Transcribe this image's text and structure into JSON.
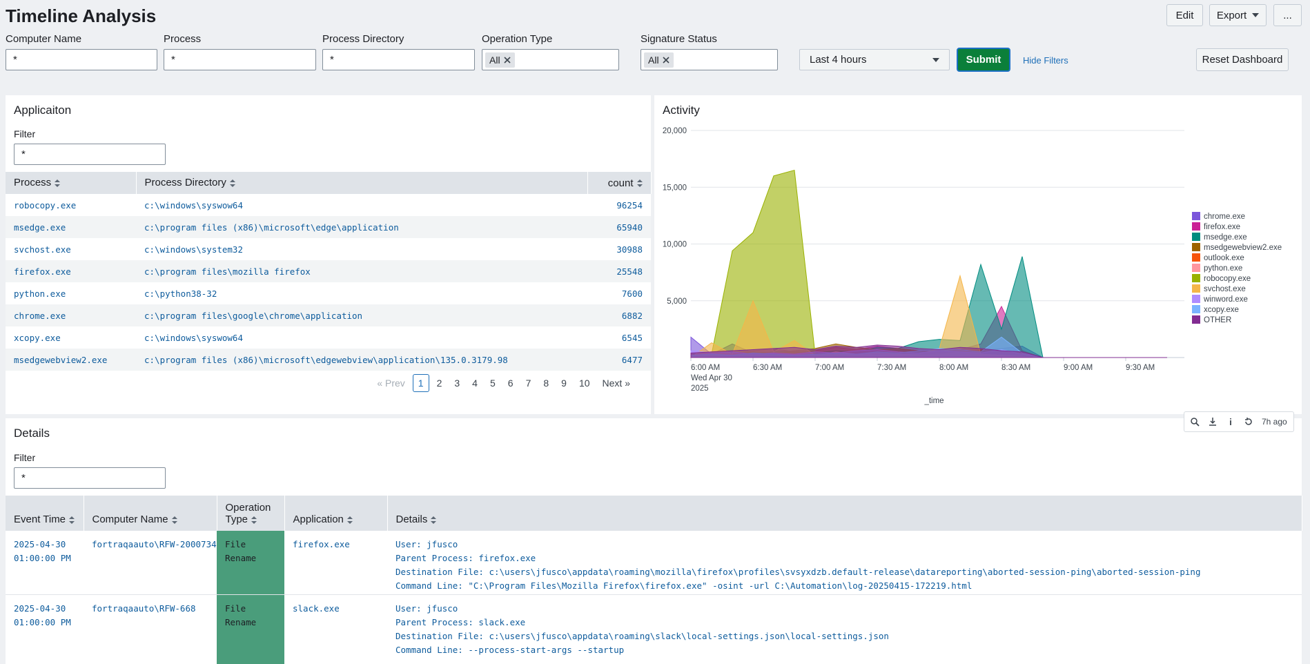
{
  "header": {
    "title": "Timeline Analysis",
    "buttons": [
      "Edit",
      "Export",
      "..."
    ]
  },
  "filters": [
    {
      "label": "Computer Name",
      "value": "*"
    },
    {
      "label": "Process",
      "value": "*"
    },
    {
      "label": "Process Directory",
      "value": "*"
    },
    {
      "label": "Operation Type",
      "token": "All"
    },
    {
      "label": "Signature Status",
      "token": "All"
    }
  ],
  "time_picker": "Last 4 hours",
  "submit": "Submit",
  "hide_filters": "Hide Filters",
  "reset": "Reset Dashboard",
  "application": {
    "title": "Applicaiton",
    "filter_label": "Filter",
    "filter_value": "*",
    "columns": [
      "Process",
      "Process Directory",
      "count"
    ],
    "rows": [
      [
        "robocopy.exe",
        "c:\\windows\\syswow64",
        96254
      ],
      [
        "msedge.exe",
        "c:\\program files (x86)\\microsoft\\edge\\application",
        65940
      ],
      [
        "svchost.exe",
        "c:\\windows\\system32",
        30988
      ],
      [
        "firefox.exe",
        "c:\\program files\\mozilla firefox",
        25548
      ],
      [
        "python.exe",
        "c:\\python38-32",
        7600
      ],
      [
        "chrome.exe",
        "c:\\program files\\google\\chrome\\application",
        6882
      ],
      [
        "xcopy.exe",
        "c:\\windows\\syswow64",
        6545
      ],
      [
        "msedgewebview2.exe",
        "c:\\program files (x86)\\microsoft\\edgewebview\\application\\135.0.3179.98",
        6477
      ]
    ],
    "pagination": {
      "prev": "« Prev",
      "pages": [
        1,
        2,
        3,
        4,
        5,
        6,
        7,
        8,
        9,
        10
      ],
      "current": 1,
      "next": "Next »"
    }
  },
  "chart_data": {
    "type": "area",
    "title": "Activity",
    "xlabel": "_time",
    "x": [
      "2025-04-30 06:00",
      "2025-04-30 06:10",
      "2025-04-30 06:20",
      "2025-04-30 06:30",
      "2025-04-30 06:40",
      "2025-04-30 06:50",
      "2025-04-30 07:00",
      "2025-04-30 07:10",
      "2025-04-30 07:20",
      "2025-04-30 07:30",
      "2025-04-30 07:40",
      "2025-04-30 07:50",
      "2025-04-30 08:00",
      "2025-04-30 08:10",
      "2025-04-30 08:20",
      "2025-04-30 08:30",
      "2025-04-30 08:40",
      "2025-04-30 08:50",
      "2025-04-30 09:00",
      "2025-04-30 09:10",
      "2025-04-30 09:20",
      "2025-04-30 09:30",
      "2025-04-30 09:40",
      "2025-04-30 09:50"
    ],
    "xlim": [
      "2025-04-30 06:00",
      "2025-04-30 09:55"
    ],
    "xticks": [
      {
        "value": "2025-04-30 06:00",
        "label": "6:00 AM"
      },
      {
        "value": "2025-04-30 06:30",
        "label": "6:30 AM"
      },
      {
        "value": "2025-04-30 07:00",
        "label": "7:00 AM"
      },
      {
        "value": "2025-04-30 07:30",
        "label": "7:30 AM"
      },
      {
        "value": "2025-04-30 08:00",
        "label": "8:00 AM"
      },
      {
        "value": "2025-04-30 08:30",
        "label": "8:30 AM"
      },
      {
        "value": "2025-04-30 09:00",
        "label": "9:00 AM"
      },
      {
        "value": "2025-04-30 09:30",
        "label": "9:30 AM"
      }
    ],
    "xtick_sublabels": [
      "Wed Apr 30",
      "2025"
    ],
    "ylim": [
      0,
      20000
    ],
    "yticks": [
      {
        "value": 5000,
        "label": "5,000"
      },
      {
        "value": 10000,
        "label": "10,000"
      },
      {
        "value": 15000,
        "label": "15,000"
      },
      {
        "value": 20000,
        "label": "20,000"
      }
    ],
    "grid": true,
    "legend": "right",
    "series": [
      {
        "name": "chrome.exe",
        "color": "#7b56db",
        "values": [
          1800,
          300,
          1200,
          400,
          300,
          600,
          300,
          400,
          500,
          600,
          400,
          300,
          500,
          400,
          600,
          800,
          1000,
          0,
          0,
          0,
          0,
          0,
          0,
          0
        ]
      },
      {
        "name": "firefox.exe",
        "color": "#cb2196",
        "values": [
          200,
          300,
          400,
          600,
          800,
          500,
          600,
          900,
          700,
          1000,
          800,
          600,
          500,
          700,
          1200,
          4500,
          600,
          0,
          0,
          0,
          0,
          0,
          0,
          0
        ]
      },
      {
        "name": "msedge.exe",
        "color": "#008c80",
        "values": [
          300,
          500,
          400,
          300,
          500,
          600,
          400,
          600,
          500,
          900,
          800,
          1400,
          1600,
          1500,
          8200,
          2500,
          8900,
          0,
          0,
          0,
          0,
          0,
          0,
          0
        ]
      },
      {
        "name": "msedgewebview2.exe",
        "color": "#9d6300",
        "values": [
          300,
          400,
          300,
          500,
          400,
          600,
          800,
          1200,
          900,
          700,
          800,
          600,
          500,
          600,
          700,
          500,
          400,
          0,
          0,
          0,
          0,
          0,
          0,
          0
        ]
      },
      {
        "name": "outlook.exe",
        "color": "#f6540b",
        "values": [
          100,
          200,
          150,
          300,
          200,
          250,
          200,
          300,
          250,
          200,
          300,
          200,
          250,
          200,
          300,
          200,
          100,
          0,
          0,
          0,
          0,
          0,
          0,
          0
        ]
      },
      {
        "name": "python.exe",
        "color": "#ff969e",
        "values": [
          100,
          100,
          200,
          300,
          200,
          300,
          200,
          500,
          300,
          200,
          300,
          200,
          300,
          400,
          300,
          200,
          100,
          0,
          0,
          0,
          0,
          0,
          0,
          0
        ]
      },
      {
        "name": "robocopy.exe",
        "color": "#99b100",
        "values": [
          0,
          300,
          9400,
          11000,
          16000,
          16500,
          300,
          200,
          100,
          100,
          100,
          200,
          300,
          500,
          300,
          200,
          100,
          0,
          0,
          0,
          0,
          0,
          0,
          0
        ]
      },
      {
        "name": "svchost.exe",
        "color": "#f4b649",
        "values": [
          0,
          1300,
          300,
          5000,
          500,
          1500,
          200,
          300,
          300,
          400,
          300,
          300,
          800,
          7200,
          300,
          200,
          100,
          0,
          0,
          0,
          0,
          0,
          0,
          0
        ]
      },
      {
        "name": "winword.exe",
        "color": "#ae8cff",
        "values": [
          600,
          400,
          500,
          300,
          400,
          300,
          500,
          400,
          600,
          700,
          500,
          400,
          600,
          500,
          400,
          700,
          300,
          0,
          0,
          0,
          0,
          0,
          0,
          0
        ]
      },
      {
        "name": "xcopy.exe",
        "color": "#7ab3ff",
        "values": [
          200,
          300,
          200,
          400,
          300,
          200,
          300,
          400,
          300,
          500,
          400,
          600,
          800,
          700,
          500,
          1800,
          400,
          0,
          0,
          0,
          0,
          0,
          0,
          0
        ]
      },
      {
        "name": "OTHER",
        "color": "#822c91",
        "values": [
          400,
          500,
          600,
          700,
          800,
          900,
          700,
          1000,
          900,
          1100,
          1000,
          800,
          700,
          900,
          800,
          600,
          500,
          0,
          0,
          0,
          0,
          0,
          0,
          0
        ]
      }
    ]
  },
  "chart_toolbar": {
    "updated": "7h ago"
  },
  "details": {
    "title": "Details",
    "filter_label": "Filter",
    "filter_value": "*",
    "columns": [
      "Event Time",
      "Computer Name",
      "Operation Type",
      "Application",
      "Details"
    ],
    "rows": [
      [
        "2025-04-30 01:00:00 PM",
        "fortraqaauto\\RFW-2000734",
        "File Rename",
        "firefox.exe",
        [
          "User: jfusco",
          "Parent Process: firefox.exe",
          "Destination File: c:\\users\\jfusco\\appdata\\roaming\\mozilla\\firefox\\profiles\\svsyxdzb.default-release\\datareporting\\aborted-session-ping\\aborted-session-ping",
          "Command Line: \"C:\\Program Files\\Mozilla Firefox\\firefox.exe\" -osint -url C:\\Automation\\log-20250415-172219.html"
        ]
      ],
      [
        "2025-04-30 01:00:00 PM",
        "fortraqaauto\\RFW-668",
        "File Rename",
        "slack.exe",
        [
          "User: jfusco",
          "Parent Process: slack.exe",
          "Destination File: c:\\users\\jfusco\\appdata\\roaming\\slack\\local-settings.json\\local-settings.json",
          "Command Line: --process-start-args --startup"
        ]
      ]
    ]
  }
}
